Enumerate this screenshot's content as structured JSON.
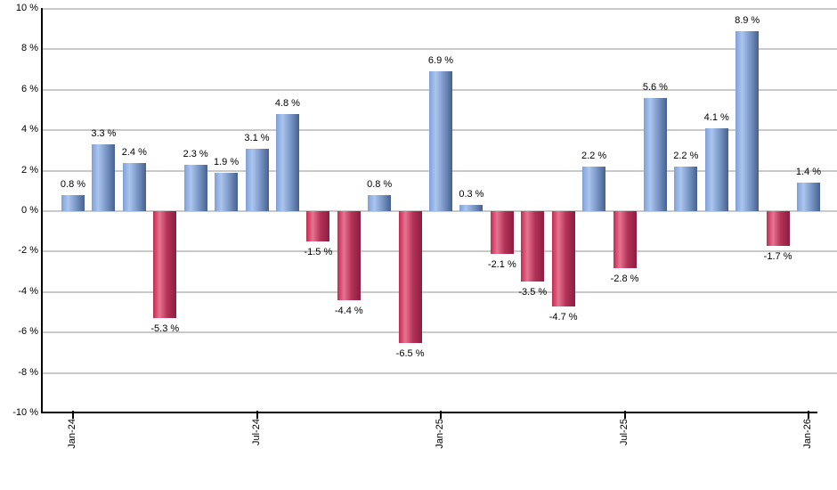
{
  "chart_data": {
    "type": "bar",
    "description": "Monthly percentage returns bar chart, positive months blue, negative months red",
    "ylim": [
      -10,
      10
    ],
    "y_tick_step": 2,
    "grid": true,
    "legend": "none",
    "y_axis": {
      "ticks": [
        {
          "value": 10,
          "label": "10 %"
        },
        {
          "value": 8,
          "label": "8 %"
        },
        {
          "value": 6,
          "label": "6 %"
        },
        {
          "value": 4,
          "label": "4 %"
        },
        {
          "value": 2,
          "label": "2 %"
        },
        {
          "value": 0,
          "label": "0 %"
        },
        {
          "value": -2,
          "label": "-2 %"
        },
        {
          "value": -4,
          "label": "-4 %"
        },
        {
          "value": -6,
          "label": "-6 %"
        },
        {
          "value": -8,
          "label": "-8 %"
        },
        {
          "value": -10,
          "label": "-10 %"
        }
      ]
    },
    "x_axis": {
      "ticks": [
        {
          "index": 0,
          "label": "Jan-24"
        },
        {
          "index": 6,
          "label": "Jul-24"
        },
        {
          "index": 12,
          "label": "Jan-25"
        },
        {
          "index": 18,
          "label": "Jul-25"
        },
        {
          "index": 24,
          "label": "Jan-26"
        }
      ]
    },
    "bars": [
      {
        "month": "Jan-24",
        "value": 0.8,
        "label": "0.8 %"
      },
      {
        "month": "Feb-24",
        "value": 3.3,
        "label": "3.3 %"
      },
      {
        "month": "Mar-24",
        "value": 2.4,
        "label": "2.4 %"
      },
      {
        "month": "Apr-24",
        "value": -5.3,
        "label": "-5.3 %"
      },
      {
        "month": "May-24",
        "value": 2.3,
        "label": "2.3 %"
      },
      {
        "month": "Jun-24",
        "value": 1.9,
        "label": "1.9 %"
      },
      {
        "month": "Jul-24",
        "value": 3.1,
        "label": "3.1 %"
      },
      {
        "month": "Aug-24",
        "value": 4.8,
        "label": "4.8 %"
      },
      {
        "month": "Sep-24",
        "value": -1.5,
        "label": "-1.5 %"
      },
      {
        "month": "Oct-24",
        "value": -4.4,
        "label": "-4.4 %"
      },
      {
        "month": "Nov-24",
        "value": 0.8,
        "label": "0.8 %"
      },
      {
        "month": "Dec-24",
        "value": -6.5,
        "label": "-6.5 %"
      },
      {
        "month": "Jan-25",
        "value": 6.9,
        "label": "6.9 %"
      },
      {
        "month": "Feb-25",
        "value": 0.3,
        "label": "0.3 %"
      },
      {
        "month": "Mar-25",
        "value": -2.1,
        "label": "-2.1 %"
      },
      {
        "month": "Apr-25",
        "value": -3.5,
        "label": "-3.5 %"
      },
      {
        "month": "May-25",
        "value": -4.7,
        "label": "-4.7 %"
      },
      {
        "month": "Jun-25",
        "value": 2.2,
        "label": "2.2 %"
      },
      {
        "month": "Jul-25",
        "value": -2.8,
        "label": "-2.8 %"
      },
      {
        "month": "Aug-25",
        "value": 5.6,
        "label": "5.6 %"
      },
      {
        "month": "Sep-25",
        "value": 2.2,
        "label": "2.2 %"
      },
      {
        "month": "Oct-25",
        "value": 4.1,
        "label": "4.1 %"
      },
      {
        "month": "Nov-25",
        "value": 8.9,
        "label": "8.9 %"
      },
      {
        "month": "Dec-25",
        "value": -1.7,
        "label": "-1.7 %"
      },
      {
        "month": "Jan-26",
        "value": 1.4,
        "label": "1.4 %"
      }
    ],
    "colors": {
      "background": "#ffffff",
      "axis": "#000000",
      "gridline": "#c9c9c9",
      "label_text": "#000000",
      "positive_stops": [
        "#7fa0d8",
        "#abc5ee",
        "#7e9aca",
        "#46618f"
      ],
      "negative_stops": [
        "#c02b52",
        "#e87390",
        "#b43358",
        "#8d1d3f"
      ]
    }
  }
}
